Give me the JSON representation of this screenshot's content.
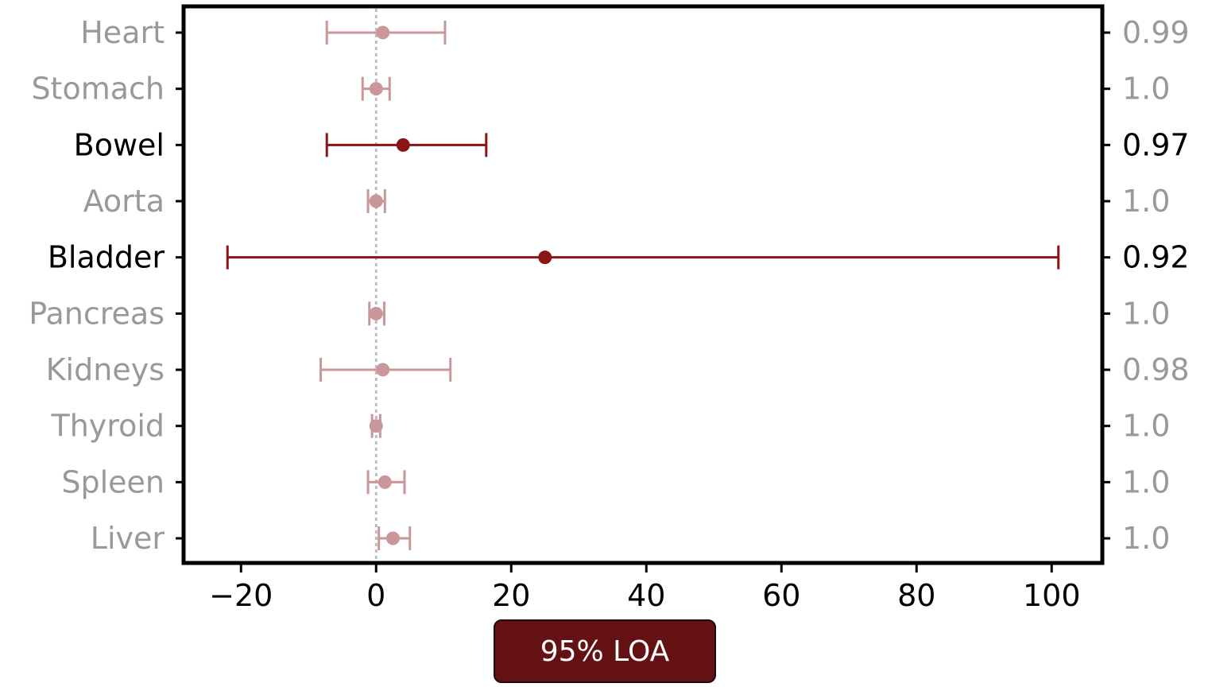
{
  "chart_data": {
    "type": "forest",
    "categories": [
      "Heart",
      "Stomach",
      "Bowel",
      "Aorta",
      "Bladder",
      "Pancreas",
      "Kidneys",
      "Thyroid",
      "Spleen",
      "Liver"
    ],
    "right_labels": [
      "0.99",
      "1.0",
      "0.97",
      "1.0",
      "0.92",
      "1.0",
      "0.98",
      "1.0",
      "1.0",
      "1.0"
    ],
    "highlighted": [
      false,
      false,
      true,
      false,
      true,
      false,
      false,
      false,
      false,
      false
    ],
    "mean": [
      1.0,
      0.0,
      4.0,
      0.0,
      25.0,
      0.0,
      1.0,
      0.0,
      1.3,
      2.5
    ],
    "lower": [
      -7.3,
      -2.0,
      -7.3,
      -1.2,
      -22.0,
      -1.0,
      -8.2,
      -0.6,
      -1.2,
      0.4
    ],
    "upper": [
      10.2,
      2.0,
      16.3,
      1.3,
      101.0,
      1.2,
      11.0,
      0.6,
      4.2,
      5.0
    ],
    "xticks": [
      -20,
      0,
      20,
      40,
      60,
      80,
      100
    ],
    "xtick_labels": [
      "−20",
      "0",
      "20",
      "40",
      "60",
      "80",
      "100"
    ],
    "xlim": [
      -28.5,
      107.5
    ],
    "reference_line_x": 0,
    "xlabel": "",
    "ylabel": "",
    "colors": {
      "highlight": "#8b1416",
      "muted": "#c99699",
      "highlight_text": "#000000",
      "muted_text": "#999999",
      "reference_line": "#bbbbbb"
    }
  },
  "legend": {
    "label": "95% LOA",
    "color": "#641114"
  }
}
